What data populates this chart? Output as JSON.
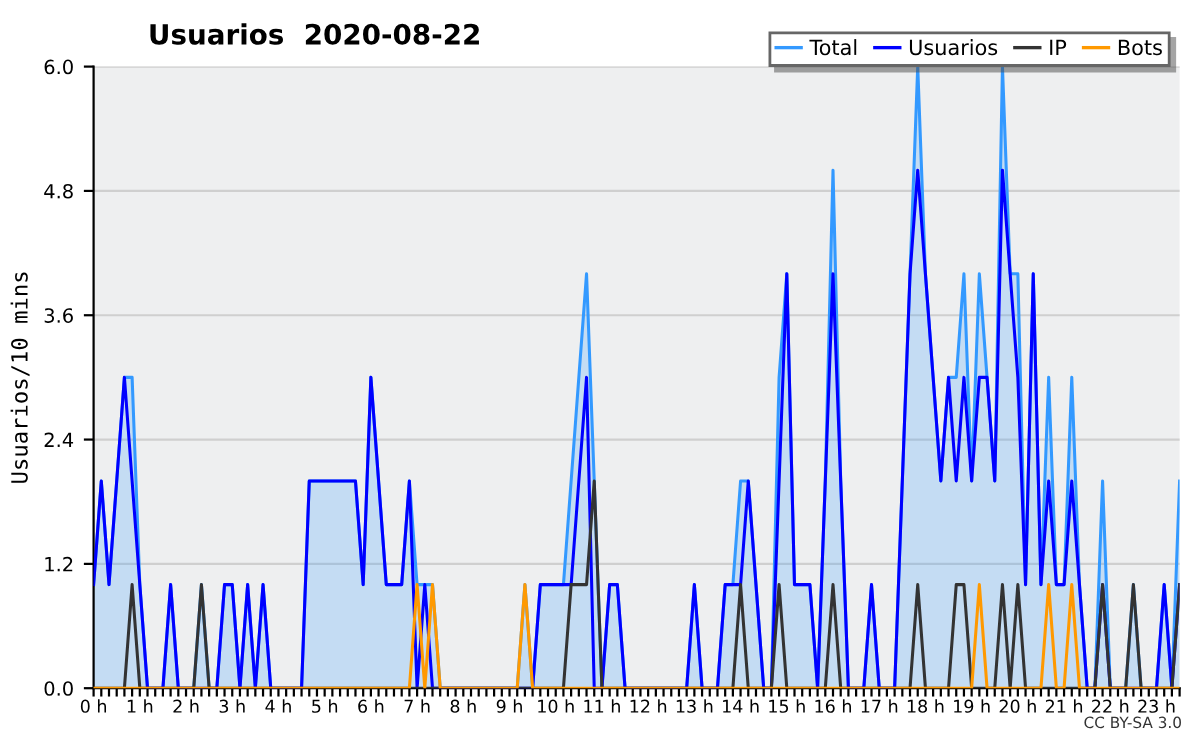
{
  "chart_data": {
    "type": "line",
    "title": "Usuarios  2020-08-22",
    "ylabel": "Usuarios/10 mins",
    "categories": [
      "0 h",
      null,
      null,
      null,
      null,
      null,
      "1 h",
      null,
      null,
      null,
      null,
      null,
      "2 h",
      null,
      null,
      null,
      null,
      null,
      "3 h",
      null,
      null,
      null,
      null,
      null,
      "4 h",
      null,
      null,
      null,
      null,
      null,
      "5 h",
      null,
      null,
      null,
      null,
      null,
      "6 h",
      null,
      null,
      null,
      null,
      null,
      "7 h",
      null,
      null,
      null,
      null,
      null,
      "8 h",
      null,
      null,
      null,
      null,
      null,
      "9 h",
      null,
      null,
      null,
      null,
      null,
      "10 h",
      null,
      null,
      null,
      null,
      null,
      "11 h",
      null,
      null,
      null,
      null,
      null,
      "12 h",
      null,
      null,
      null,
      null,
      null,
      "13 h",
      null,
      null,
      null,
      null,
      null,
      "14 h",
      null,
      null,
      null,
      null,
      null,
      "15 h",
      null,
      null,
      null,
      null,
      null,
      "16 h",
      null,
      null,
      null,
      null,
      null,
      "17 h",
      null,
      null,
      null,
      null,
      null,
      "18 h",
      null,
      null,
      null,
      null,
      null,
      "19 h",
      null,
      null,
      null,
      null,
      null,
      "20 h",
      null,
      null,
      null,
      null,
      null,
      "21 h",
      null,
      null,
      null,
      null,
      null,
      "22 h",
      null,
      null,
      null,
      null,
      null,
      "23 h",
      null,
      null,
      null
    ],
    "series": [
      {
        "name": "Total",
        "type": "area",
        "color": "#3399ff",
        "values": [
          1,
          2,
          1,
          2,
          3,
          3,
          1,
          0,
          0,
          0,
          1,
          0,
          0,
          0,
          1,
          0,
          0,
          1,
          1,
          0,
          1,
          0,
          1,
          0,
          0,
          0,
          0,
          0,
          2,
          2,
          2,
          2,
          2,
          2,
          2,
          1,
          3,
          2,
          1,
          1,
          1,
          2,
          1,
          1,
          1,
          0,
          0,
          0,
          0,
          0,
          0,
          0,
          0,
          0,
          0,
          0,
          1,
          0,
          1,
          1,
          1,
          1,
          2,
          3,
          4,
          2,
          0,
          1,
          1,
          0,
          0,
          0,
          0,
          0,
          0,
          0,
          0,
          0,
          1,
          0,
          0,
          0,
          1,
          1,
          2,
          2,
          1,
          0,
          0,
          3,
          4,
          1,
          1,
          1,
          0,
          2,
          5,
          2,
          0,
          0,
          0,
          1,
          0,
          0,
          0,
          2,
          4,
          6,
          4,
          3,
          2,
          3,
          3,
          4,
          2,
          4,
          3,
          2,
          6,
          4,
          4,
          1,
          4,
          1,
          3,
          1,
          1,
          3,
          1,
          0,
          0,
          2,
          0,
          0,
          0,
          1,
          0,
          0,
          0,
          1,
          0,
          2
        ]
      },
      {
        "name": "Usuarios",
        "color": "#0000ff",
        "values": [
          1,
          2,
          1,
          2,
          3,
          2,
          1,
          0,
          0,
          0,
          1,
          0,
          0,
          0,
          0,
          0,
          0,
          1,
          1,
          0,
          1,
          0,
          1,
          0,
          0,
          0,
          0,
          0,
          2,
          2,
          2,
          2,
          2,
          2,
          2,
          1,
          3,
          2,
          1,
          1,
          1,
          2,
          0,
          1,
          0,
          0,
          0,
          0,
          0,
          0,
          0,
          0,
          0,
          0,
          0,
          0,
          0,
          0,
          1,
          1,
          1,
          1,
          1,
          2,
          3,
          0,
          0,
          1,
          1,
          0,
          0,
          0,
          0,
          0,
          0,
          0,
          0,
          0,
          1,
          0,
          0,
          0,
          1,
          1,
          1,
          2,
          1,
          0,
          0,
          2,
          4,
          1,
          1,
          1,
          0,
          2,
          4,
          2,
          0,
          0,
          0,
          1,
          0,
          0,
          0,
          2,
          4,
          5,
          4,
          3,
          2,
          3,
          2,
          3,
          2,
          3,
          3,
          2,
          5,
          4,
          3,
          1,
          4,
          1,
          2,
          1,
          1,
          2,
          1,
          0,
          0,
          1,
          0,
          0,
          0,
          0,
          0,
          0,
          0,
          1,
          0,
          1
        ]
      },
      {
        "name": "IP",
        "color": "#333333",
        "values": [
          0,
          0,
          0,
          0,
          0,
          1,
          0,
          0,
          0,
          0,
          0,
          0,
          0,
          0,
          1,
          0,
          0,
          0,
          0,
          0,
          0,
          0,
          0,
          0,
          0,
          0,
          0,
          0,
          0,
          0,
          0,
          0,
          0,
          0,
          0,
          0,
          0,
          0,
          0,
          0,
          0,
          0,
          0,
          0,
          0,
          0,
          0,
          0,
          0,
          0,
          0,
          0,
          0,
          0,
          0,
          0,
          0,
          0,
          0,
          0,
          0,
          0,
          1,
          1,
          1,
          2,
          0,
          0,
          0,
          0,
          0,
          0,
          0,
          0,
          0,
          0,
          0,
          0,
          0,
          0,
          0,
          0,
          0,
          0,
          1,
          0,
          0,
          0,
          0,
          1,
          0,
          0,
          0,
          0,
          0,
          0,
          1,
          0,
          0,
          0,
          0,
          0,
          0,
          0,
          0,
          0,
          0,
          1,
          0,
          0,
          0,
          0,
          1,
          1,
          0,
          0,
          0,
          0,
          1,
          0,
          1,
          0,
          0,
          0,
          0,
          0,
          0,
          0,
          0,
          0,
          0,
          1,
          0,
          0,
          0,
          1,
          0,
          0,
          0,
          0,
          0,
          1
        ]
      },
      {
        "name": "Bots",
        "color": "#ff9900",
        "values": [
          0,
          0,
          0,
          0,
          0,
          0,
          0,
          0,
          0,
          0,
          0,
          0,
          0,
          0,
          0,
          0,
          0,
          0,
          0,
          0,
          0,
          0,
          0,
          0,
          0,
          0,
          0,
          0,
          0,
          0,
          0,
          0,
          0,
          0,
          0,
          0,
          0,
          0,
          0,
          0,
          0,
          0,
          1,
          0,
          1,
          0,
          0,
          0,
          0,
          0,
          0,
          0,
          0,
          0,
          0,
          0,
          1,
          0,
          0,
          0,
          0,
          0,
          0,
          0,
          0,
          0,
          0,
          0,
          0,
          0,
          0,
          0,
          0,
          0,
          0,
          0,
          0,
          0,
          0,
          0,
          0,
          0,
          0,
          0,
          0,
          0,
          0,
          0,
          0,
          0,
          0,
          0,
          0,
          0,
          0,
          0,
          0,
          0,
          0,
          0,
          0,
          0,
          0,
          0,
          0,
          0,
          0,
          0,
          0,
          0,
          0,
          0,
          0,
          0,
          0,
          1,
          0,
          0,
          0,
          0,
          0,
          0,
          0,
          0,
          1,
          0,
          0,
          1,
          0,
          0,
          0,
          0,
          0,
          0,
          0,
          0,
          0,
          0,
          0,
          0,
          0,
          0
        ]
      }
    ],
    "ylim": [
      0,
      6
    ],
    "yticks": [
      {
        "value": 0,
        "label": "0.0"
      },
      1.2,
      2.4,
      3.6,
      4.8,
      {
        "value": 6,
        "label": "6.0"
      }
    ],
    "grid": "y",
    "legend": "top right",
    "annotations": [
      "CC BY-SA 3.0"
    ]
  }
}
